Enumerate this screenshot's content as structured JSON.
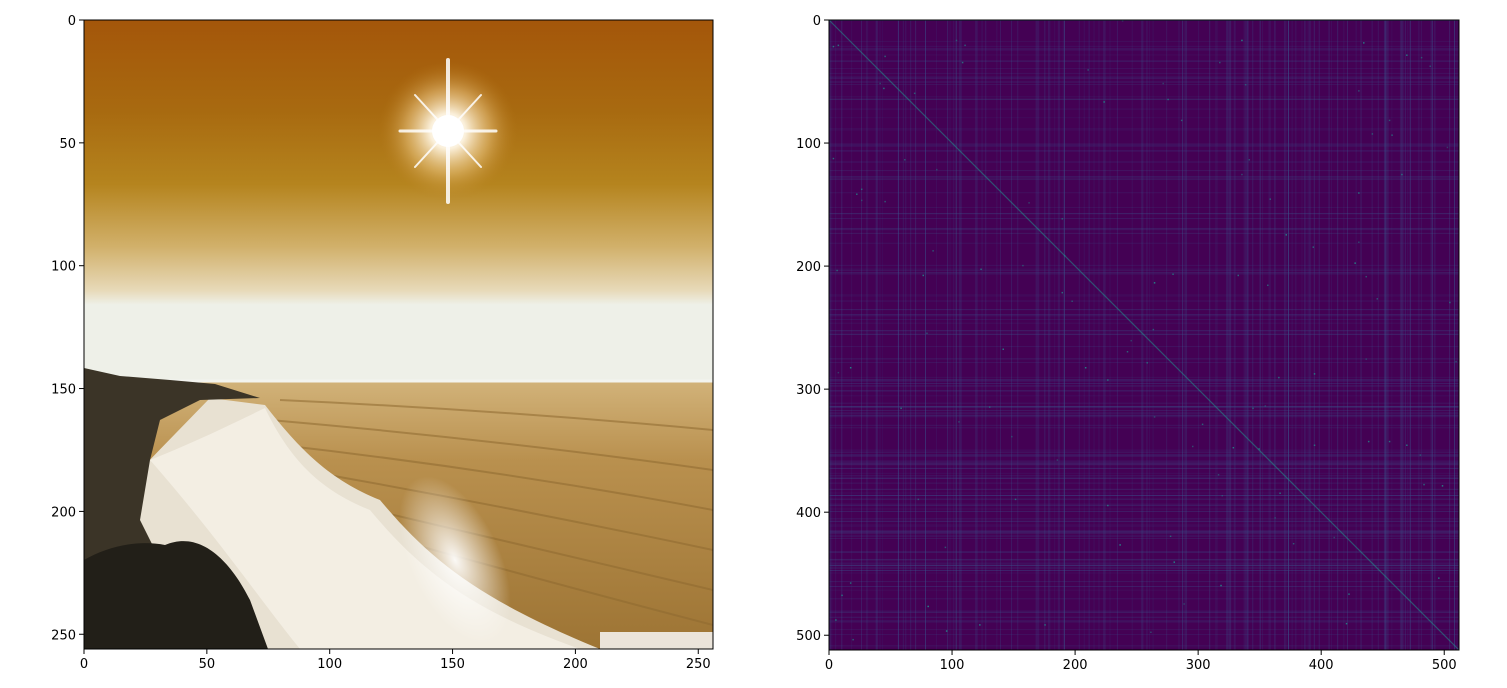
{
  "chart_data": [
    {
      "type": "image",
      "content": "photo",
      "xlim": [
        0,
        256
      ],
      "ylim": [
        256,
        0
      ],
      "xticks": [
        0,
        50,
        100,
        150,
        200,
        250
      ],
      "yticks": [
        0,
        50,
        100,
        150,
        200,
        250
      ],
      "xtick_labels": [
        "0",
        "50",
        "100",
        "150",
        "200",
        "250"
      ],
      "ytick_labels": [
        "0",
        "50",
        "100",
        "150",
        "200",
        "250"
      ],
      "colors": {
        "sky_top": "#a95c0c",
        "sky_mid": "#b77f1a",
        "horizon": "#e9dfcc",
        "sea": "#b8904d",
        "surf": "#efe9dc",
        "cliff": "#2f2a22"
      }
    },
    {
      "type": "heatmap",
      "colormap": "viridis",
      "xlim": [
        0,
        512
      ],
      "ylim": [
        512,
        0
      ],
      "xticks": [
        0,
        100,
        200,
        300,
        400,
        500
      ],
      "yticks": [
        0,
        100,
        200,
        300,
        400,
        500
      ],
      "xtick_labels": [
        "0",
        "100",
        "200",
        "300",
        "400",
        "500"
      ],
      "ytick_labels": [
        "0",
        "100",
        "200",
        "300",
        "400",
        "500"
      ],
      "colors": {
        "background": "#440154",
        "highlight": "#3b528b",
        "peak": "#21918c"
      }
    }
  ]
}
